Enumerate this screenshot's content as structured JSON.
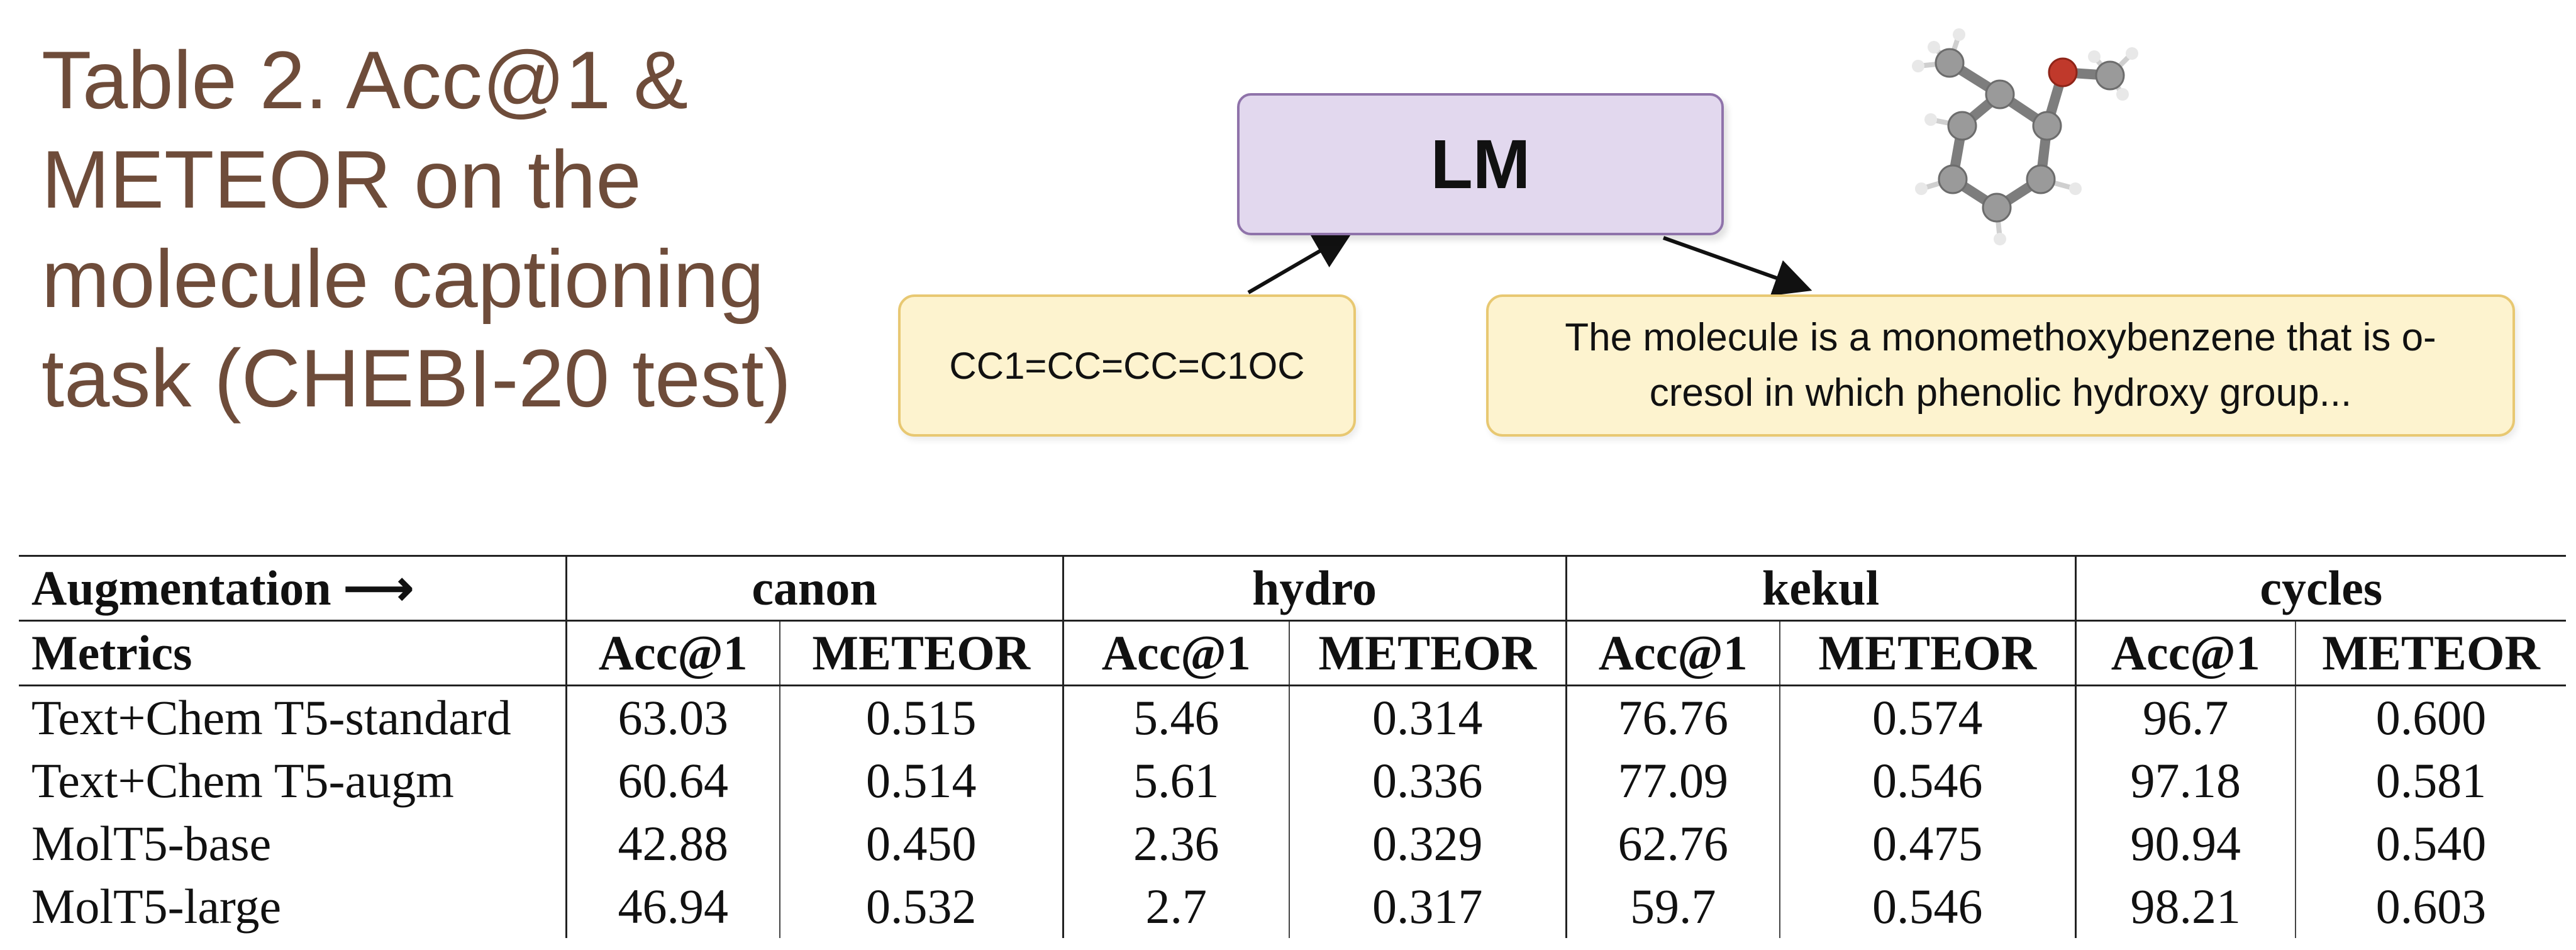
{
  "title": "Table 2. Acc@1 &\nMETEOR on the\nmolecule captioning\ntask (CHEBI-20 test)",
  "diagram": {
    "model_label": "LM",
    "input_smiles": "CC1=CC=CC=C1OC",
    "output_caption": "The molecule is a monomethoxybenzene that is o-cresol in which phenolic hydroxy group..."
  },
  "table": {
    "augmentation_label": "Augmentation ⟶",
    "metrics_label": "Metrics",
    "groups": [
      "canon",
      "hydro",
      "kekul",
      "cycles"
    ],
    "metric_names": [
      "Acc@1",
      "METEOR"
    ],
    "rows": [
      {
        "model": "Text+Chem T5-standard",
        "values": [
          "63.03",
          "0.515",
          "5.46",
          "0.314",
          "76.76",
          "0.574",
          "96.7",
          "0.600"
        ]
      },
      {
        "model": "Text+Chem T5-augm",
        "values": [
          "60.64",
          "0.514",
          "5.61",
          "0.336",
          "77.09",
          "0.546",
          "97.18",
          "0.581"
        ]
      },
      {
        "model": "MolT5-base",
        "values": [
          "42.88",
          "0.450",
          "2.36",
          "0.329",
          "62.76",
          "0.475",
          "90.94",
          "0.540"
        ]
      },
      {
        "model": "MolT5-large",
        "values": [
          "46.94",
          "0.532",
          "2.7",
          "0.317",
          "59.7",
          "0.546",
          "98.21",
          "0.603"
        ]
      }
    ]
  },
  "colors": {
    "title": "#6e4c3a",
    "lm_fill": "#e2d8ee",
    "lm_border": "#8f73aa",
    "note_fill": "#fdf3cf",
    "note_border": "#e8c872",
    "oxygen_atom": "#c0392b",
    "carbon_atom": "#9a9a9a"
  }
}
